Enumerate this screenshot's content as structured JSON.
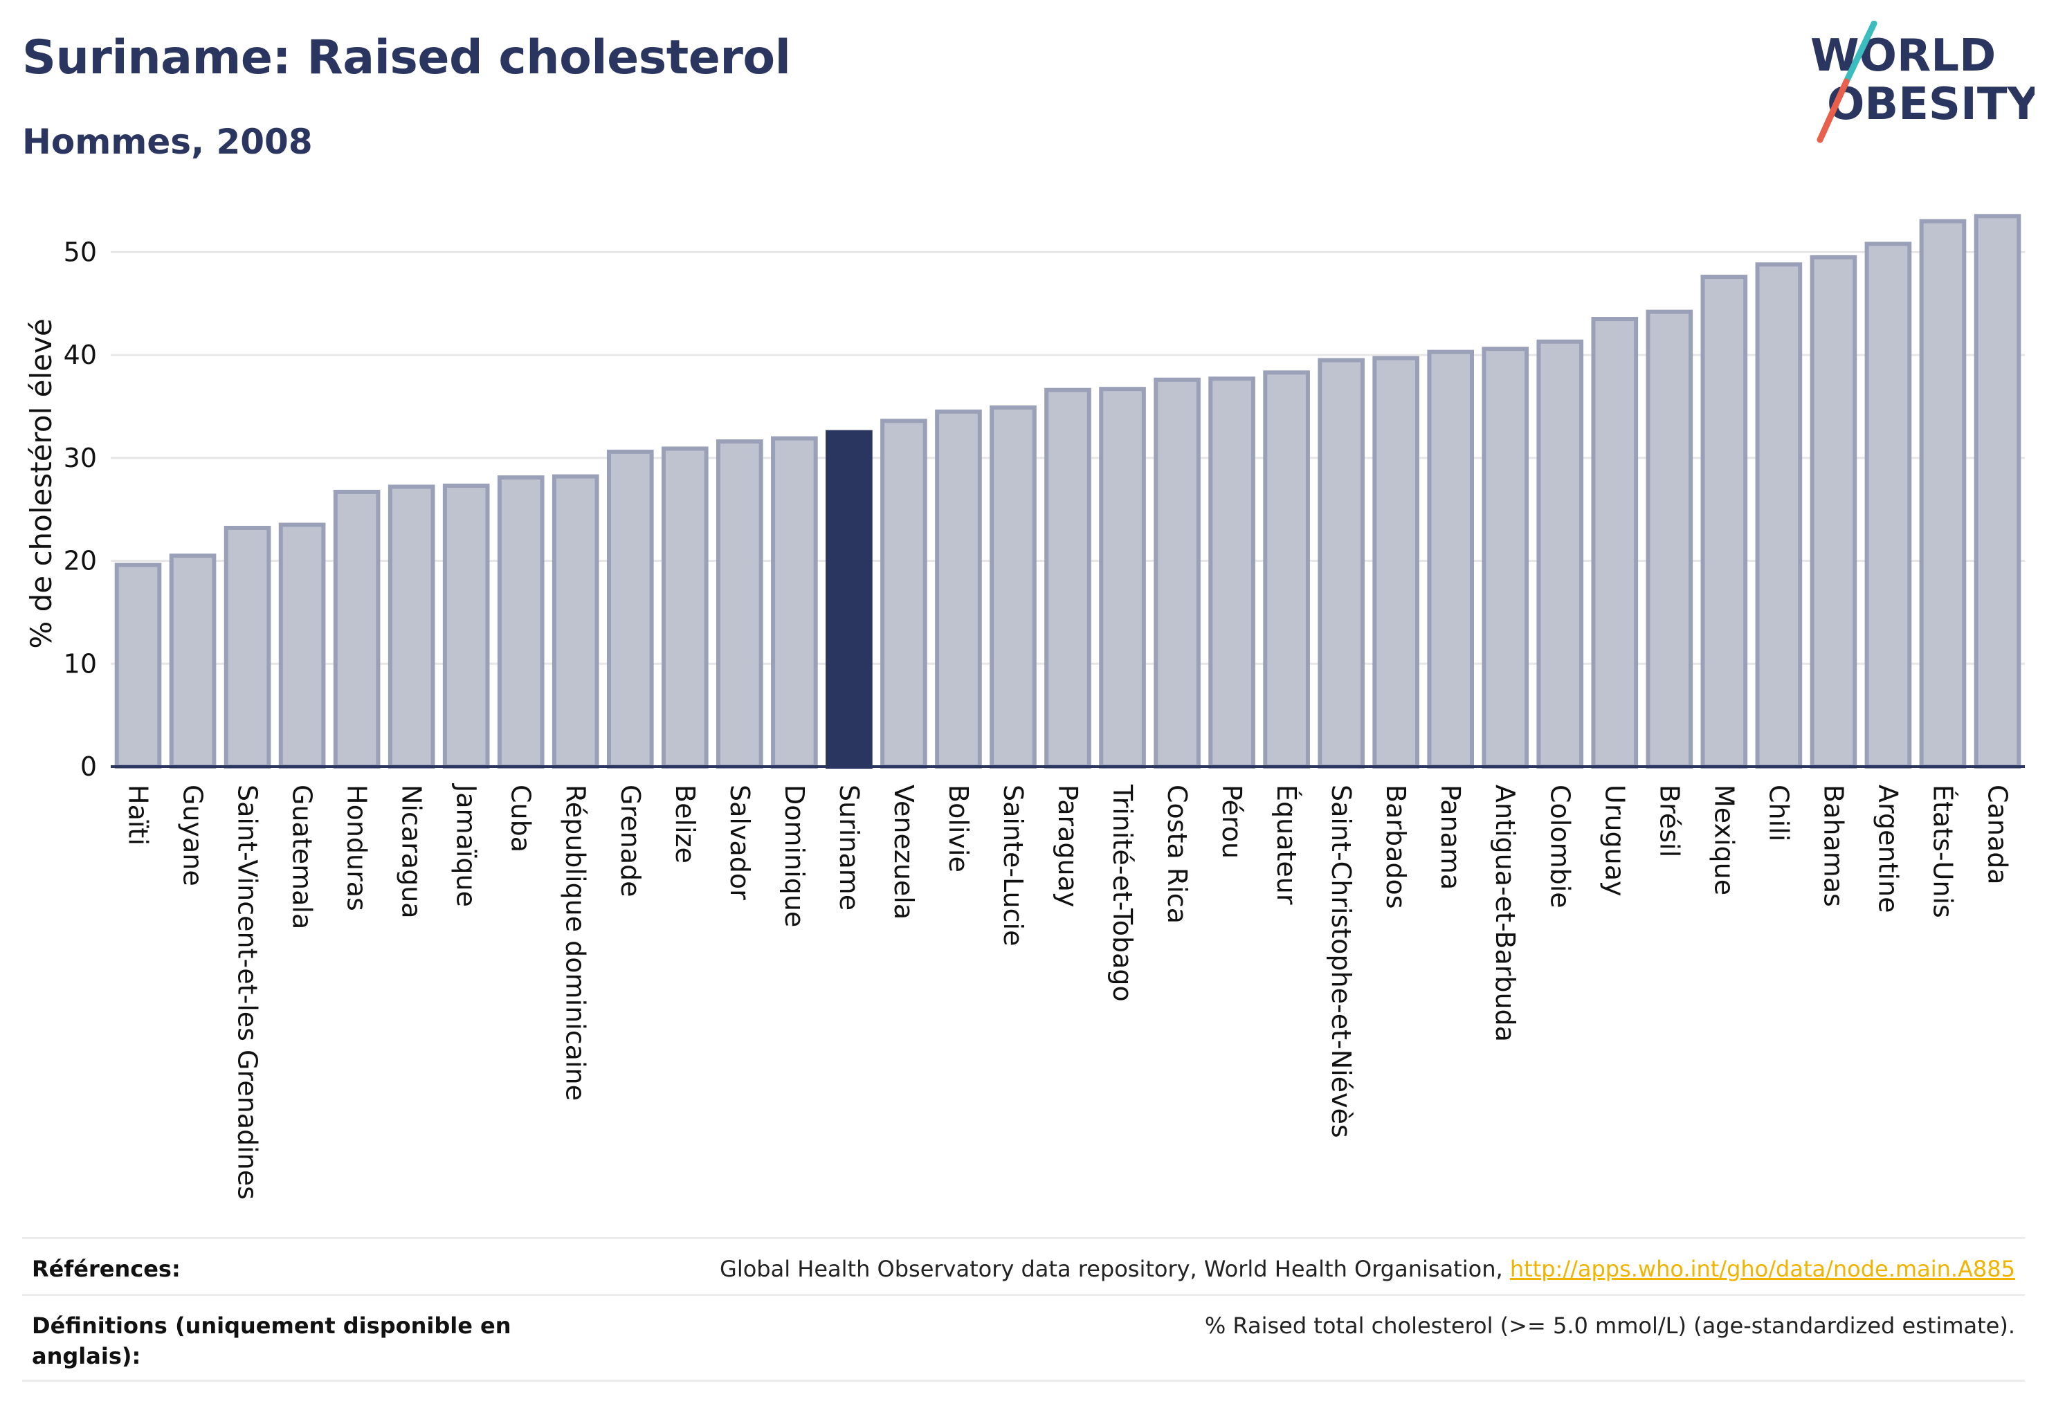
{
  "header": {
    "title": "Suriname: Raised cholesterol",
    "subtitle": "Hommes, 2008"
  },
  "logo": {
    "line1": "WORLD",
    "line2": "OBESITY",
    "colors": {
      "text": "#2a3560",
      "slash_teal": "#3bbcbf",
      "slash_coral": "#e8604c"
    }
  },
  "chart_data": {
    "type": "bar",
    "ylabel": "% de cholestérol élevé",
    "ylim": [
      0,
      55
    ],
    "yticks": [
      0,
      10,
      20,
      30,
      40,
      50
    ],
    "grid": true,
    "highlight": "Suriname",
    "colors": {
      "bar": "#bfc2cf",
      "bar_edge": "#9aa0b8",
      "highlight": "#2a3560",
      "grid": "#e6e6e6",
      "axis": "#2a3560"
    },
    "categories": [
      "Haïti",
      "Guyane",
      "Saint-Vincent-et-les Grenadines",
      "Guatemala",
      "Honduras",
      "Nicaragua",
      "Jamaïque",
      "Cuba",
      "République dominicaine",
      "Grenade",
      "Belize",
      "Salvador",
      "Dominique",
      "Suriname",
      "Venezuela",
      "Bolivie",
      "Sainte-Lucie",
      "Paraguay",
      "Trinité-et-Tobago",
      "Costa Rica",
      "Pérou",
      "Équateur",
      "Saint-Christophe-et-Niévès",
      "Barbados",
      "Panama",
      "Antigua-et-Barbuda",
      "Colombie",
      "Uruguay",
      "Brésil",
      "Mexique",
      "Chili",
      "Bahamas",
      "Argentine",
      "États-Unis",
      "Canada"
    ],
    "values": [
      19.6,
      20.5,
      23.2,
      23.5,
      26.7,
      27.2,
      27.3,
      28.1,
      28.2,
      30.6,
      30.9,
      31.6,
      31.9,
      32.5,
      33.6,
      34.5,
      34.9,
      36.6,
      36.7,
      37.6,
      37.7,
      38.3,
      39.5,
      39.7,
      40.3,
      40.6,
      41.3,
      43.5,
      44.2,
      47.6,
      48.8,
      49.5,
      50.8,
      53.0,
      53.5
    ]
  },
  "footer": {
    "references_label": "Références:",
    "references_text": "Global Health Observatory data repository, World Health Organisation,",
    "references_link": "http://apps.who.int/gho/data/node.main.A885",
    "definitions_label_line1": "Définitions (uniquement disponible en",
    "definitions_label_line2": "anglais):",
    "definitions_text": "% Raised total cholesterol (>= 5.0 mmol/L) (age-standardized estimate)."
  }
}
